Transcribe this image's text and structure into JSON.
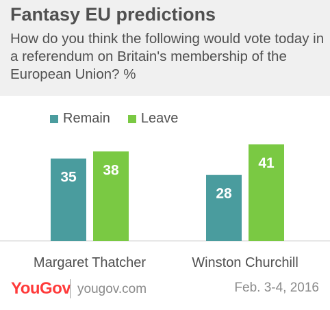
{
  "header": {
    "title": "Fantasy EU predictions",
    "subtitle": "How do you think the following would vote today in a referendum on Britain's membership of the European Union? %"
  },
  "legend": {
    "items": [
      {
        "label": "Remain",
        "color": "#4a9c9e"
      },
      {
        "label": "Leave",
        "color": "#7ac943"
      }
    ]
  },
  "chart_data": {
    "type": "bar",
    "categories": [
      "Margaret Thatcher",
      "Winston Churchill"
    ],
    "series": [
      {
        "name": "Remain",
        "values": [
          35,
          28
        ],
        "color": "#4a9c9e"
      },
      {
        "name": "Leave",
        "values": [
          38,
          41
        ],
        "color": "#7ac943"
      }
    ],
    "ylim": [
      0,
      41
    ],
    "grid": false,
    "legend_position": "top-left",
    "data_labels": true
  },
  "footer": {
    "logo": "YouGov",
    "url": "yougov.com",
    "date": "Feb. 3-4, 2016",
    "logo_color": "#ff3a3a"
  }
}
